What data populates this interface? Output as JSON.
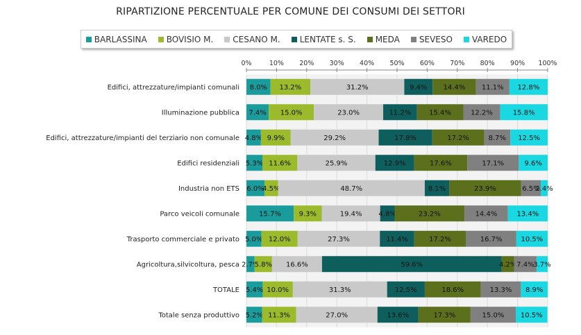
{
  "chart_data": {
    "type": "bar",
    "orientation": "horizontal",
    "stacked": "100%",
    "title": "RIPARTIZIONE PERCENTUALE PER COMUNE DEI CONSUMI DEI SETTORI",
    "xlim": [
      0,
      100
    ],
    "xticks": [
      "0%",
      "10%",
      "20%",
      "30%",
      "40%",
      "50%",
      "60%",
      "70%",
      "80%",
      "90%",
      "100%"
    ],
    "legend_position": "top",
    "grid": true,
    "categories": [
      "Edifici, attrezzature/impianti comunali",
      "Illuminazione pubblica",
      "Edifici, attrezzature/impianti del terziario non comunale",
      "Edifici residenziali",
      "Industria non ETS",
      "Parco veicoli comunale",
      "Trasporto commerciale e privato",
      "Agricoltura,silvicoltura, pesca",
      "TOTALE",
      "Totale senza produttivo"
    ],
    "series": [
      {
        "name": "BARLASSINA",
        "color": "#1a9c9c",
        "values": [
          8.0,
          7.4,
          4.8,
          5.3,
          6.0,
          15.7,
          5.0,
          2.7,
          5.4,
          5.2
        ]
      },
      {
        "name": "BOVISIO M.",
        "color": "#9cbb2c",
        "values": [
          13.2,
          15.0,
          9.9,
          11.6,
          4.5,
          9.3,
          12.0,
          5.8,
          10.0,
          11.3
        ]
      },
      {
        "name": "CESANO M.",
        "color": "#c9c9c9",
        "values": [
          31.2,
          23.0,
          29.2,
          25.9,
          48.7,
          19.4,
          27.3,
          16.6,
          31.3,
          27.0
        ]
      },
      {
        "name": "LENTATE s. S.",
        "color": "#0e5e5e",
        "values": [
          9.4,
          11.2,
          17.8,
          12.9,
          8.1,
          4.8,
          11.4,
          59.6,
          12.5,
          13.6
        ]
      },
      {
        "name": "MEDA",
        "color": "#5b6f1d",
        "values": [
          14.4,
          15.4,
          17.2,
          17.6,
          23.9,
          23.2,
          17.2,
          4.2,
          18.6,
          17.3
        ]
      },
      {
        "name": "SEVESO",
        "color": "#808080",
        "values": [
          11.1,
          12.2,
          8.7,
          17.1,
          6.5,
          14.4,
          16.7,
          7.4,
          13.3,
          15.0
        ]
      },
      {
        "name": "VAREDO",
        "color": "#19d8e2",
        "values": [
          12.8,
          15.8,
          12.5,
          9.6,
          2.4,
          13.4,
          10.5,
          3.7,
          8.9,
          10.5
        ]
      }
    ]
  }
}
